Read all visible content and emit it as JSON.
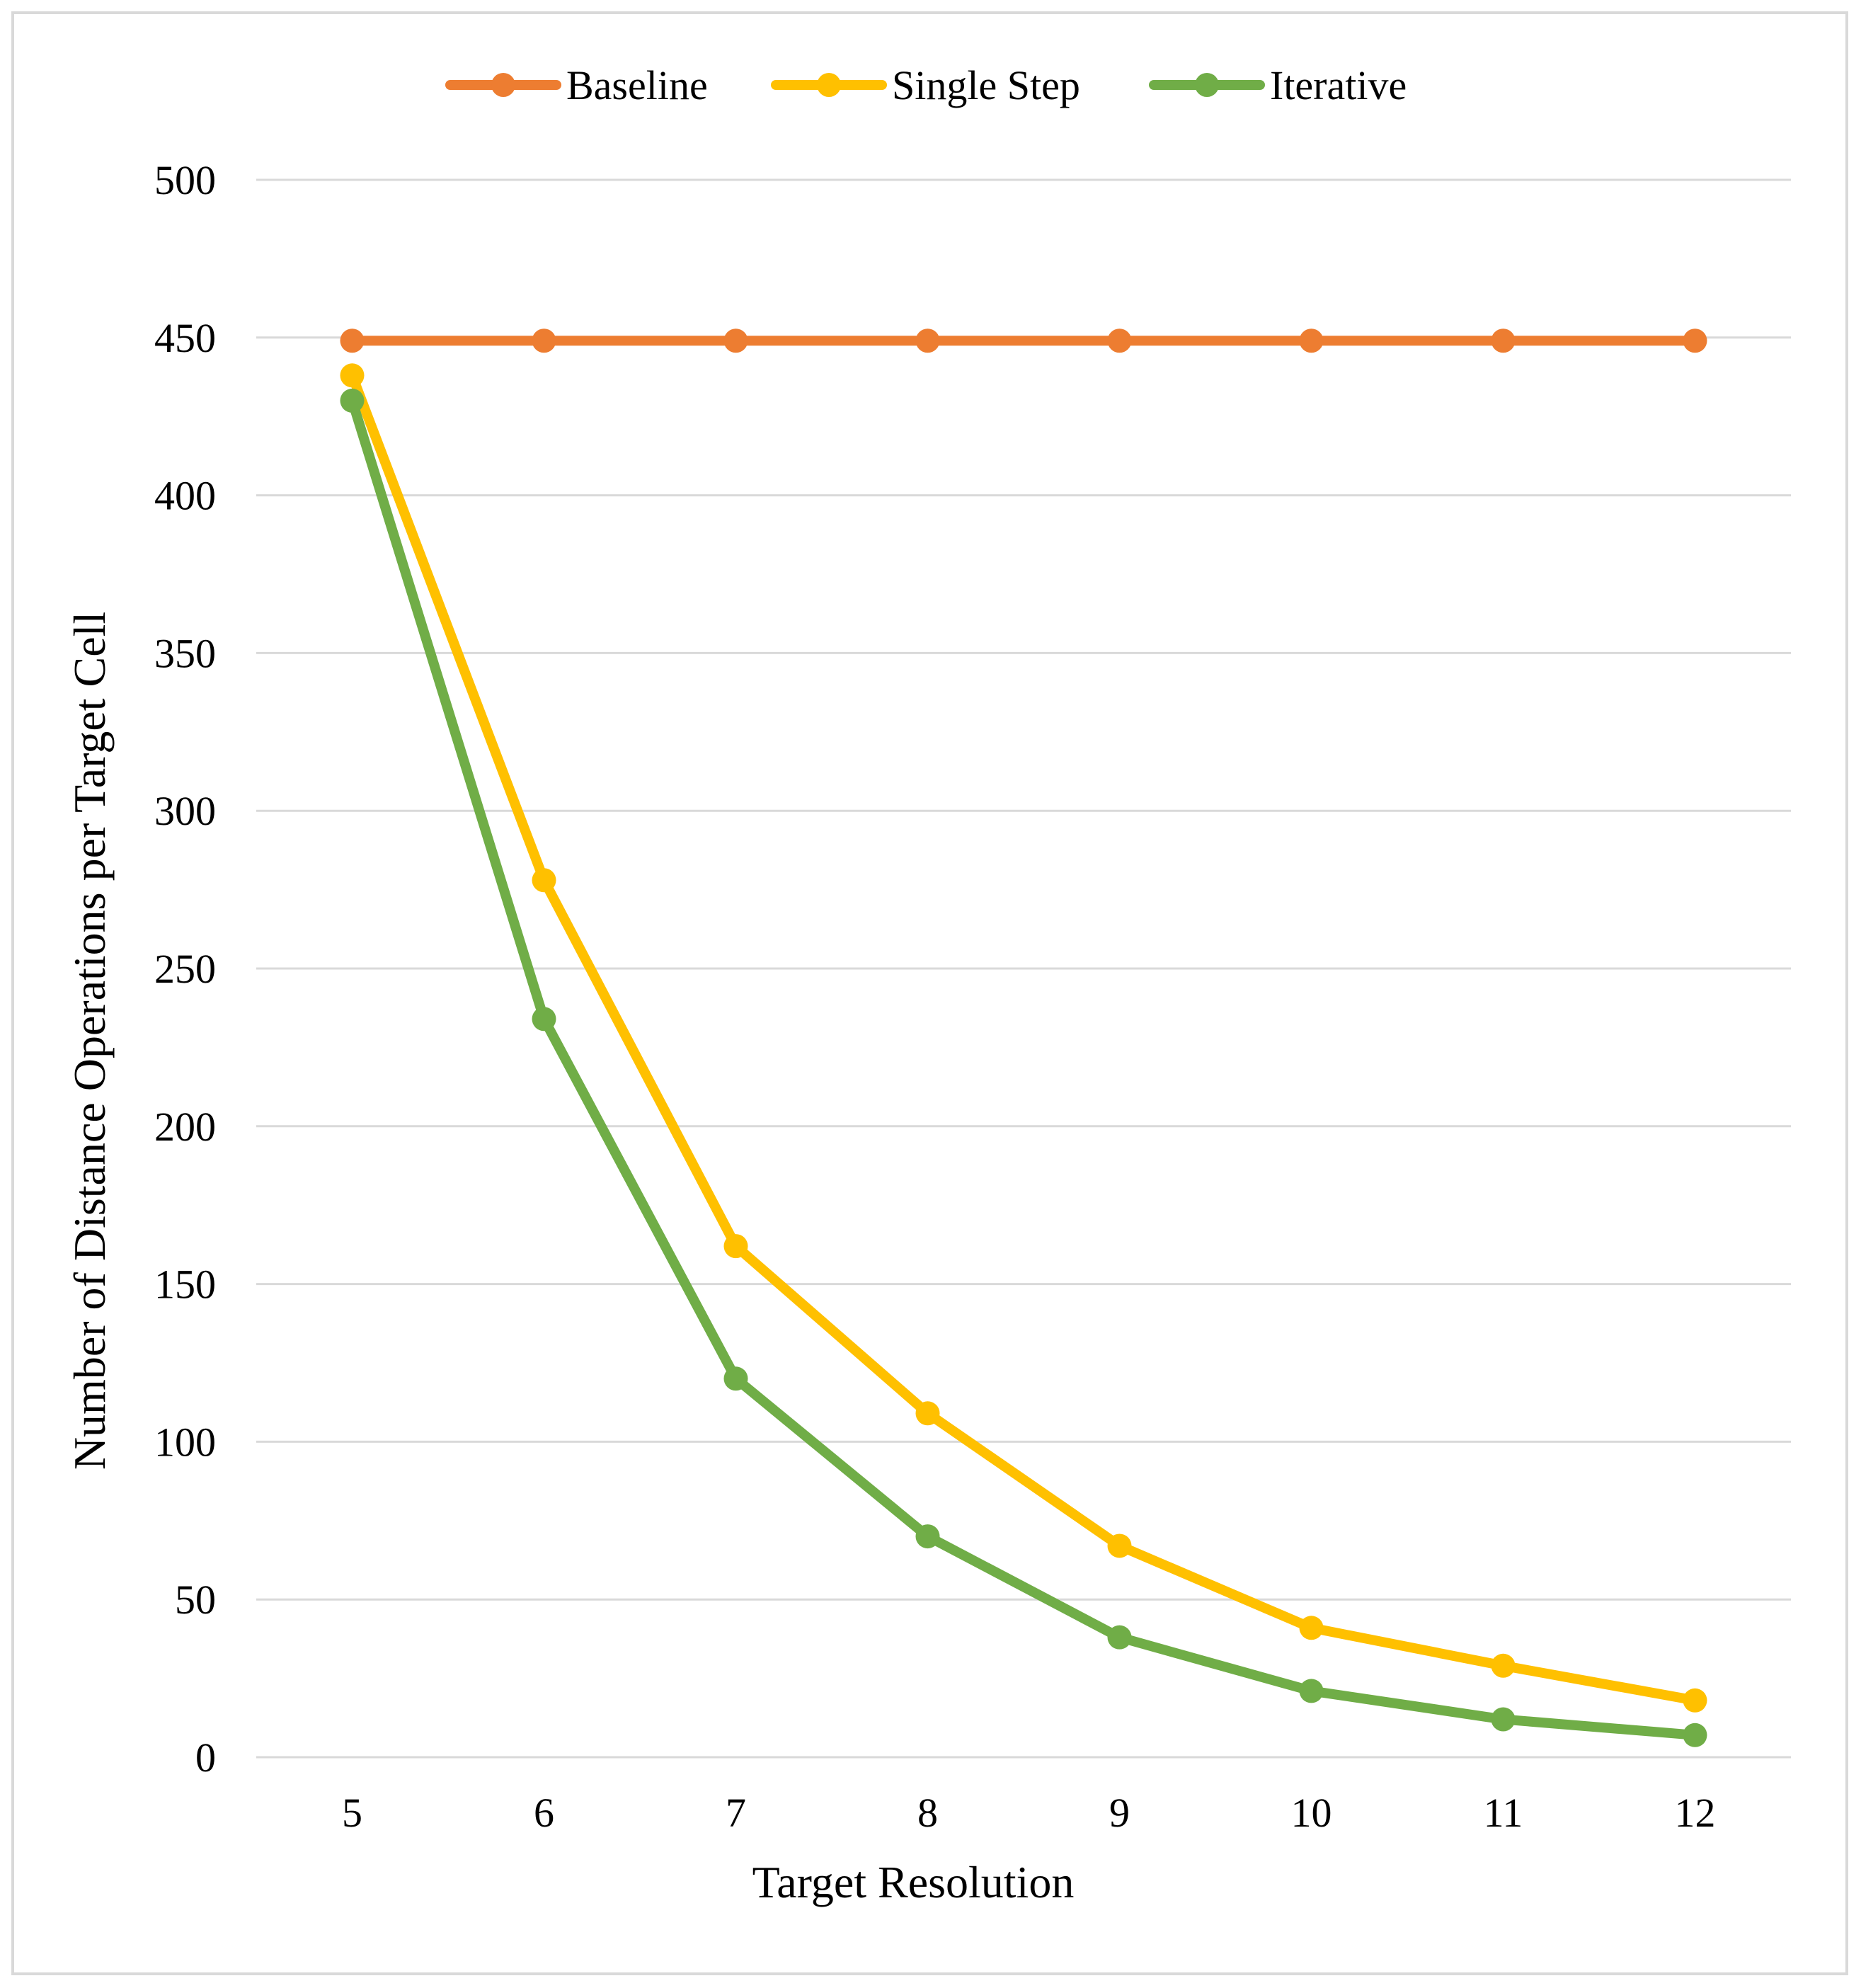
{
  "chart_data": {
    "type": "line",
    "title": "",
    "xlabel": "Target Resolution",
    "ylabel": "Number of Distance Operations per Target Cell",
    "x": [
      "5",
      "6",
      "7",
      "8",
      "9",
      "10",
      "11",
      "12"
    ],
    "ylim": [
      0,
      500
    ],
    "yticks": [
      "0",
      "50",
      "100",
      "150",
      "200",
      "250",
      "300",
      "350",
      "400",
      "450",
      "500"
    ],
    "grid": "horizontal",
    "legend_position": "top-center",
    "series": [
      {
        "name": "Baseline",
        "color": "#ED7D31",
        "values": [
          449,
          449,
          449,
          449,
          449,
          449,
          449,
          449
        ]
      },
      {
        "name": "Single Step",
        "color": "#FFC000",
        "values": [
          438,
          278,
          162,
          109,
          67,
          41,
          29,
          18
        ]
      },
      {
        "name": "Iterative",
        "color": "#70AD47",
        "values": [
          430,
          234,
          120,
          70,
          38,
          21,
          12,
          7
        ]
      }
    ]
  }
}
